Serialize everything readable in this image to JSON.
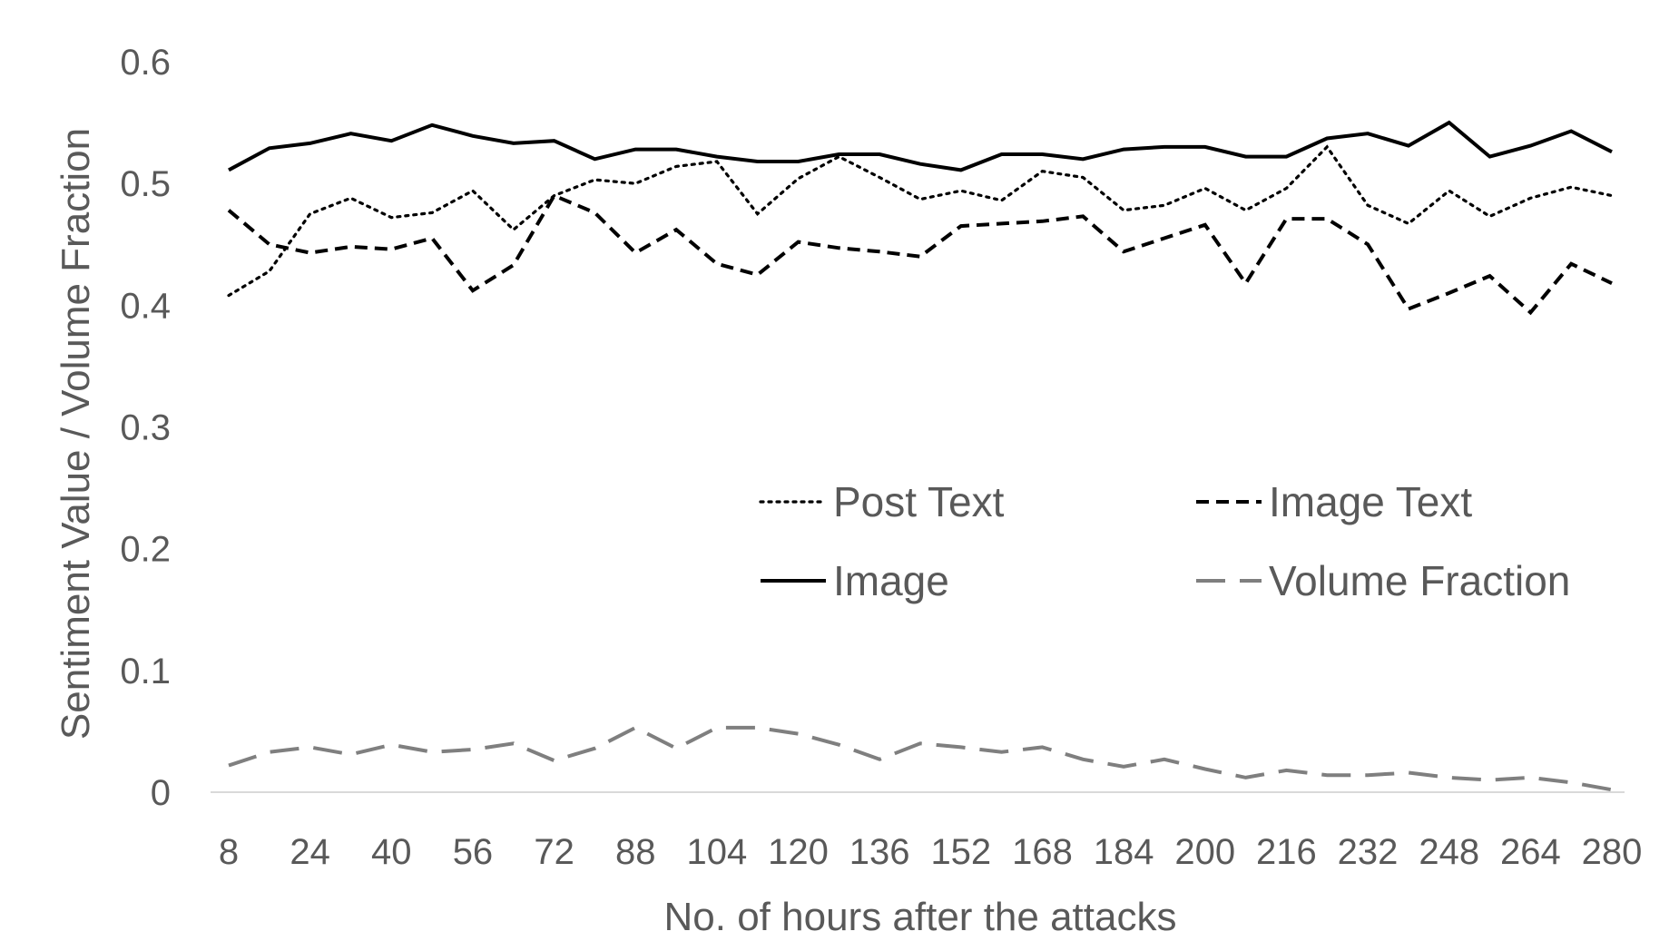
{
  "chart_data": {
    "type": "line",
    "title": "",
    "xlabel": "No. of hours after the attacks",
    "ylabel": "Sentiment Value / Volume Fraction",
    "x": [
      8,
      16,
      24,
      32,
      40,
      48,
      56,
      64,
      72,
      80,
      88,
      96,
      104,
      112,
      120,
      128,
      136,
      144,
      152,
      160,
      168,
      176,
      184,
      192,
      200,
      208,
      216,
      224,
      232,
      240,
      248,
      256,
      264,
      272,
      280
    ],
    "x_tick_labels": [
      "8",
      "24",
      "40",
      "56",
      "72",
      "88",
      "104",
      "120",
      "136",
      "152",
      "168",
      "184",
      "200",
      "216",
      "232",
      "248",
      "264",
      "280"
    ],
    "ylim": [
      0,
      0.6
    ],
    "y_tick_labels": [
      "0",
      "0.1",
      "0.2",
      "0.3",
      "0.4",
      "0.5",
      "0.6"
    ],
    "grid": false,
    "legend_position": "center-right",
    "series": [
      {
        "name": "Post Text",
        "style": "dotted",
        "color": "#000000",
        "values": [
          0.408,
          0.428,
          0.475,
          0.488,
          0.472,
          0.476,
          0.494,
          0.462,
          0.49,
          0.503,
          0.5,
          0.514,
          0.518,
          0.475,
          0.504,
          0.522,
          0.505,
          0.487,
          0.494,
          0.486,
          0.51,
          0.505,
          0.478,
          0.482,
          0.496,
          0.478,
          0.496,
          0.53,
          0.482,
          0.467,
          0.494,
          0.473,
          0.488,
          0.497,
          0.49
        ]
      },
      {
        "name": "Image Text",
        "style": "dashed",
        "color": "#000000",
        "values": [
          0.478,
          0.45,
          0.443,
          0.448,
          0.446,
          0.455,
          0.412,
          0.433,
          0.49,
          0.476,
          0.443,
          0.462,
          0.434,
          0.425,
          0.452,
          0.447,
          0.444,
          0.44,
          0.465,
          0.467,
          0.469,
          0.473,
          0.444,
          0.455,
          0.466,
          0.418,
          0.471,
          0.471,
          0.45,
          0.397,
          0.41,
          0.424,
          0.394,
          0.434,
          0.418
        ]
      },
      {
        "name": "Image",
        "style": "solid",
        "color": "#000000",
        "values": [
          0.511,
          0.529,
          0.533,
          0.541,
          0.535,
          0.548,
          0.539,
          0.533,
          0.535,
          0.52,
          0.528,
          0.528,
          0.522,
          0.518,
          0.518,
          0.524,
          0.524,
          0.516,
          0.511,
          0.524,
          0.524,
          0.52,
          0.528,
          0.53,
          0.53,
          0.522,
          0.522,
          0.537,
          0.541,
          0.531,
          0.55,
          0.522,
          0.531,
          0.543,
          0.526
        ]
      },
      {
        "name": "Volume Fraction",
        "style": "long-dash",
        "color": "#7f7f7f",
        "values": [
          0.022,
          0.033,
          0.037,
          0.031,
          0.039,
          0.033,
          0.035,
          0.04,
          0.026,
          0.036,
          0.053,
          0.036,
          0.053,
          0.053,
          0.048,
          0.039,
          0.027,
          0.04,
          0.037,
          0.033,
          0.037,
          0.027,
          0.021,
          0.027,
          0.019,
          0.012,
          0.018,
          0.014,
          0.014,
          0.016,
          0.012,
          0.01,
          0.012,
          0.008,
          0.002
        ]
      }
    ]
  }
}
